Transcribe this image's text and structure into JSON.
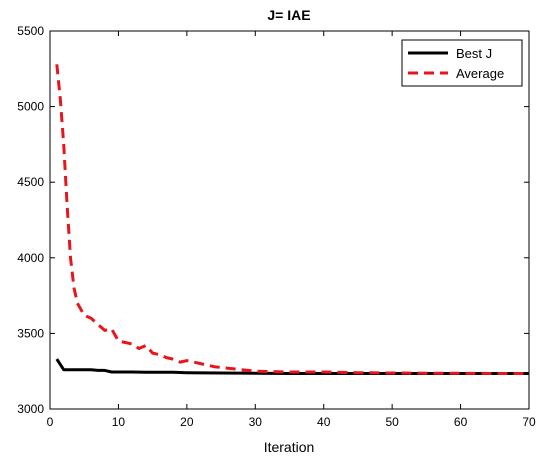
{
  "chart_data": {
    "type": "line",
    "title": "J= IAE",
    "xlabel": "Iteration",
    "ylabel": "",
    "xlim": [
      0,
      70
    ],
    "ylim": [
      3000,
      5500
    ],
    "xticks": [
      0,
      10,
      20,
      30,
      40,
      50,
      60,
      70
    ],
    "yticks": [
      3000,
      3500,
      4000,
      4500,
      5000,
      5500
    ],
    "grid": false,
    "legend_position": "top-right",
    "series": [
      {
        "name": "Best J",
        "style": "solid",
        "color": "#000000",
        "x": [
          1,
          2,
          3,
          4,
          5,
          6,
          7,
          8,
          9,
          10,
          12,
          14,
          16,
          18,
          20,
          25,
          30,
          35,
          40,
          45,
          50,
          55,
          60,
          65,
          70
        ],
        "y": [
          3330,
          3260,
          3260,
          3260,
          3260,
          3260,
          3255,
          3255,
          3245,
          3245,
          3245,
          3243,
          3243,
          3243,
          3240,
          3238,
          3236,
          3235,
          3235,
          3235,
          3235,
          3235,
          3235,
          3235,
          3235
        ]
      },
      {
        "name": "Average",
        "style": "dashed",
        "color": "#e8161b",
        "x": [
          1,
          1.5,
          2,
          2.5,
          3,
          3.5,
          4,
          5,
          6,
          7,
          8,
          9,
          10,
          11,
          12,
          13,
          14,
          15,
          16,
          17,
          18,
          19,
          20,
          22,
          24,
          26,
          28,
          30,
          35,
          40,
          45,
          50,
          55,
          60,
          65,
          70
        ],
        "y": [
          5280,
          5050,
          4750,
          4350,
          4000,
          3800,
          3700,
          3620,
          3600,
          3560,
          3520,
          3530,
          3450,
          3440,
          3430,
          3400,
          3420,
          3370,
          3360,
          3340,
          3330,
          3310,
          3320,
          3300,
          3280,
          3270,
          3260,
          3250,
          3245,
          3245,
          3240,
          3238,
          3237,
          3236,
          3235,
          3235
        ]
      }
    ]
  }
}
